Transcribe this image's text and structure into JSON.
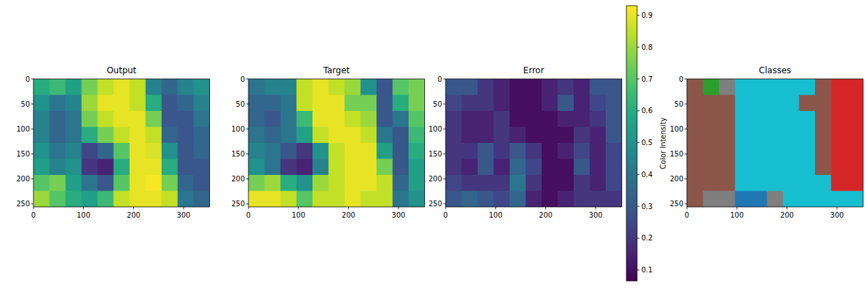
{
  "chart_data": [
    {
      "type": "heatmap",
      "title": "Output",
      "xlim": [
        0,
        352
      ],
      "ylim": [
        256,
        0
      ],
      "xticks": [
        0,
        100,
        200,
        300
      ],
      "yticks": [
        0,
        50,
        100,
        150,
        200,
        250
      ],
      "cells": [
        [
          0.6,
          0.65,
          0.55,
          0.75,
          0.85,
          0.9,
          0.85,
          0.45,
          0.35,
          0.45,
          0.5
        ],
        [
          0.5,
          0.4,
          0.45,
          0.8,
          0.9,
          0.9,
          0.85,
          0.6,
          0.3,
          0.35,
          0.45
        ],
        [
          0.45,
          0.35,
          0.4,
          0.75,
          0.85,
          0.9,
          0.9,
          0.75,
          0.3,
          0.3,
          0.4
        ],
        [
          0.45,
          0.35,
          0.4,
          0.6,
          0.75,
          0.85,
          0.9,
          0.85,
          0.35,
          0.3,
          0.35
        ],
        [
          0.5,
          0.4,
          0.45,
          0.25,
          0.35,
          0.7,
          0.9,
          0.88,
          0.5,
          0.3,
          0.35
        ],
        [
          0.55,
          0.45,
          0.5,
          0.2,
          0.15,
          0.6,
          0.9,
          0.9,
          0.6,
          0.3,
          0.3
        ],
        [
          0.7,
          0.75,
          0.55,
          0.4,
          0.3,
          0.7,
          0.9,
          0.92,
          0.75,
          0.35,
          0.3
        ],
        [
          0.8,
          0.7,
          0.6,
          0.55,
          0.65,
          0.85,
          0.9,
          0.9,
          0.85,
          0.4,
          0.35
        ]
      ]
    },
    {
      "type": "heatmap",
      "title": "Target",
      "xlim": [
        0,
        352
      ],
      "ylim": [
        256,
        0
      ],
      "xticks": [
        0,
        100,
        200,
        300
      ],
      "yticks": [
        0,
        50,
        100,
        150,
        200,
        250
      ],
      "cells": [
        [
          0.4,
          0.45,
          0.45,
          0.85,
          0.9,
          0.85,
          0.8,
          0.5,
          0.3,
          0.7,
          0.75
        ],
        [
          0.35,
          0.35,
          0.4,
          0.85,
          0.9,
          0.9,
          0.75,
          0.75,
          0.3,
          0.6,
          0.75
        ],
        [
          0.35,
          0.3,
          0.4,
          0.65,
          0.9,
          0.9,
          0.85,
          0.8,
          0.3,
          0.4,
          0.7
        ],
        [
          0.4,
          0.35,
          0.4,
          0.55,
          0.85,
          0.9,
          0.9,
          0.85,
          0.4,
          0.3,
          0.65
        ],
        [
          0.45,
          0.4,
          0.3,
          0.2,
          0.5,
          0.85,
          0.9,
          0.9,
          0.55,
          0.3,
          0.6
        ],
        [
          0.5,
          0.4,
          0.2,
          0.15,
          0.45,
          0.85,
          0.9,
          0.9,
          0.75,
          0.3,
          0.55
        ],
        [
          0.75,
          0.8,
          0.6,
          0.5,
          0.8,
          0.85,
          0.9,
          0.9,
          0.85,
          0.35,
          0.55
        ],
        [
          0.9,
          0.9,
          0.85,
          0.7,
          0.85,
          0.85,
          0.9,
          0.85,
          0.85,
          0.4,
          0.5
        ]
      ]
    },
    {
      "type": "heatmap",
      "title": "Error",
      "xlim": [
        0,
        352
      ],
      "ylim": [
        256,
        0
      ],
      "xticks": [
        0,
        100,
        200,
        300
      ],
      "yticks": [
        0,
        50,
        100,
        150,
        200,
        250
      ],
      "cells": [
        [
          0.3,
          0.3,
          0.2,
          0.15,
          0.1,
          0.1,
          0.15,
          0.2,
          0.15,
          0.3,
          0.3
        ],
        [
          0.25,
          0.2,
          0.2,
          0.15,
          0.1,
          0.1,
          0.15,
          0.3,
          0.15,
          0.25,
          0.3
        ],
        [
          0.2,
          0.15,
          0.15,
          0.2,
          0.1,
          0.1,
          0.1,
          0.15,
          0.15,
          0.2,
          0.3
        ],
        [
          0.2,
          0.15,
          0.15,
          0.2,
          0.15,
          0.1,
          0.1,
          0.1,
          0.2,
          0.15,
          0.3
        ],
        [
          0.2,
          0.2,
          0.3,
          0.2,
          0.3,
          0.2,
          0.1,
          0.15,
          0.25,
          0.15,
          0.25
        ],
        [
          0.2,
          0.15,
          0.3,
          0.15,
          0.35,
          0.25,
          0.1,
          0.1,
          0.3,
          0.15,
          0.25
        ],
        [
          0.25,
          0.2,
          0.2,
          0.2,
          0.4,
          0.2,
          0.1,
          0.1,
          0.2,
          0.15,
          0.25
        ],
        [
          0.3,
          0.35,
          0.3,
          0.25,
          0.35,
          0.15,
          0.1,
          0.15,
          0.2,
          0.2,
          0.2
        ]
      ],
      "colorbar": {
        "range": [
          0.066,
          0.93
        ],
        "ticks": [
          0.1,
          0.2,
          0.3,
          0.4,
          0.5,
          0.6,
          0.7,
          0.8,
          0.9
        ],
        "label": "Color Intensity"
      }
    },
    {
      "type": "classmap",
      "title": "Classes",
      "xlim": [
        0,
        352
      ],
      "ylim": [
        256,
        0
      ],
      "xticks": [
        0,
        100,
        200,
        300
      ],
      "yticks": [
        0,
        50,
        100,
        150,
        200,
        250
      ],
      "colors": [
        "#1f77b4",
        "#2ca02c",
        "#d62728",
        "#8c564b",
        "#7f7f7f",
        "#17becf"
      ],
      "cells": [
        [
          3,
          1,
          4,
          5,
          5,
          5,
          5,
          5,
          3,
          2,
          2
        ],
        [
          3,
          3,
          3,
          5,
          5,
          5,
          5,
          3,
          3,
          2,
          2
        ],
        [
          3,
          3,
          3,
          5,
          5,
          5,
          5,
          5,
          3,
          2,
          2
        ],
        [
          3,
          3,
          3,
          5,
          5,
          5,
          5,
          5,
          3,
          2,
          2
        ],
        [
          3,
          3,
          3,
          5,
          5,
          5,
          5,
          5,
          3,
          2,
          2
        ],
        [
          3,
          3,
          3,
          5,
          5,
          5,
          5,
          5,
          3,
          2,
          2
        ],
        [
          3,
          3,
          3,
          5,
          5,
          5,
          5,
          5,
          5,
          2,
          2
        ],
        [
          3,
          4,
          4,
          0,
          0,
          4,
          5,
          5,
          5,
          5,
          5
        ]
      ]
    }
  ]
}
